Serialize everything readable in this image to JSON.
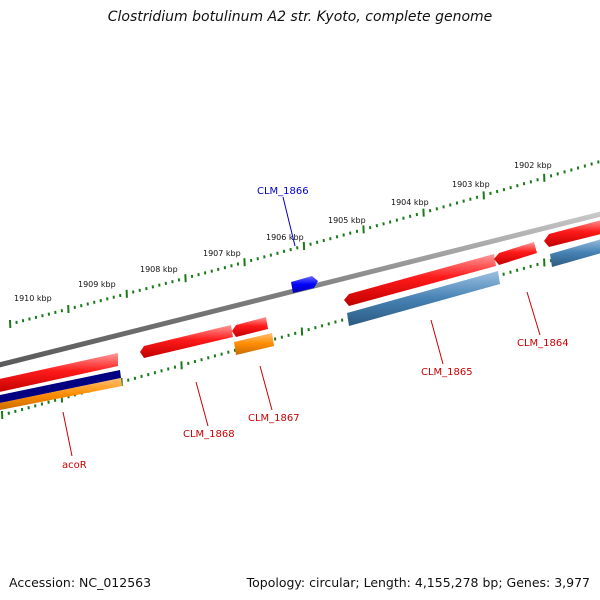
{
  "title": "Clostridium botulinum A2 str. Kyoto, complete genome",
  "footer": {
    "accession": "Accession: NC_012563",
    "summary": "Topology: circular; Length: 4,155,278 bp; Genes: 3,977"
  },
  "colors": {
    "backbone": "#8a8a8a",
    "tick": "#1a7a1a",
    "forward_gene": "#e01010",
    "reverse_cds": "#4682b4",
    "orange": "#ff8c00",
    "navy": "#000080",
    "blue_label": "#0000cc",
    "red_label": "#cc0000"
  },
  "scale_labels": [
    "1910 kbp",
    "1909 kbp",
    "1908 kbp",
    "1907 kbp",
    "1906 kbp",
    "1905 kbp",
    "1904 kbp",
    "1903 kbp",
    "1902 kbp"
  ],
  "gene_labels": [
    {
      "id": "clm1866",
      "text": "CLM_1866",
      "color": "blue"
    },
    {
      "id": "clm1864",
      "text": "CLM_1864",
      "color": "red"
    },
    {
      "id": "clm1865",
      "text": "CLM_1865",
      "color": "red"
    },
    {
      "id": "clm1867",
      "text": "CLM_1867",
      "color": "red"
    },
    {
      "id": "clm1868",
      "text": "CLM_1868",
      "color": "red"
    },
    {
      "id": "acor",
      "text": "acoR",
      "color": "red"
    }
  ]
}
